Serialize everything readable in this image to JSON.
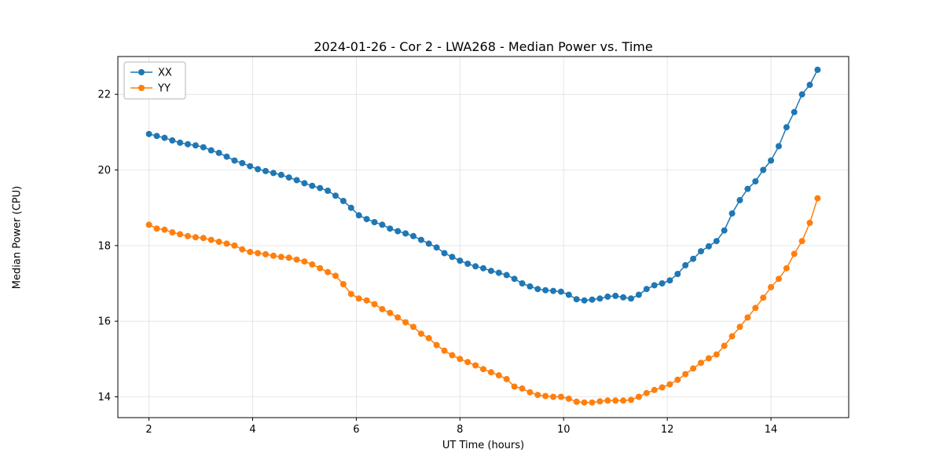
{
  "figure": {
    "title": "2024-01-26 - Cor 2 - LWA268 - Median Power vs. Time",
    "xlabel": "UT Time (hours)",
    "ylabel": "Median Power (CPU)"
  },
  "chart_data": {
    "type": "line",
    "title": "2024-01-26 - Cor 2 - LWA268 - Median Power vs. Time",
    "xlabel": "UT Time (hours)",
    "ylabel": "Median Power (CPU)",
    "xlim": [
      1.4,
      15.5
    ],
    "ylim": [
      13.45,
      23.0
    ],
    "xticks": [
      2,
      4,
      6,
      8,
      10,
      12,
      14
    ],
    "yticks": [
      14,
      16,
      18,
      20,
      22
    ],
    "grid": true,
    "legend_position": "upper left",
    "grid_color": "#e0e0e0",
    "x": [
      2.0,
      2.15,
      2.3,
      2.45,
      2.6,
      2.75,
      2.9,
      3.05,
      3.2,
      3.35,
      3.5,
      3.65,
      3.8,
      3.95,
      4.1,
      4.25,
      4.4,
      4.55,
      4.7,
      4.85,
      5.0,
      5.15,
      5.3,
      5.45,
      5.6,
      5.75,
      5.9,
      6.05,
      6.2,
      6.35,
      6.5,
      6.65,
      6.8,
      6.95,
      7.1,
      7.25,
      7.4,
      7.55,
      7.7,
      7.85,
      8.0,
      8.15,
      8.3,
      8.45,
      8.6,
      8.75,
      8.9,
      9.05,
      9.2,
      9.35,
      9.5,
      9.65,
      9.8,
      9.95,
      10.1,
      10.25,
      10.4,
      10.55,
      10.7,
      10.85,
      11.0,
      11.15,
      11.3,
      11.45,
      11.6,
      11.75,
      11.9,
      12.05,
      12.2,
      12.35,
      12.5,
      12.65,
      12.8,
      12.95,
      13.1,
      13.25,
      13.4,
      13.55,
      13.7,
      13.85,
      14.0,
      14.15,
      14.3,
      14.45,
      14.6,
      14.75,
      14.9
    ],
    "series": [
      {
        "name": "XX",
        "color": "#1f77b4",
        "marker": "circle",
        "values": [
          20.95,
          20.9,
          20.85,
          20.78,
          20.72,
          20.68,
          20.65,
          20.6,
          20.52,
          20.45,
          20.35,
          20.25,
          20.18,
          20.1,
          20.02,
          19.97,
          19.92,
          19.87,
          19.8,
          19.73,
          19.65,
          19.58,
          19.52,
          19.45,
          19.32,
          19.18,
          19.0,
          18.8,
          18.7,
          18.62,
          18.55,
          18.45,
          18.38,
          18.32,
          18.25,
          18.15,
          18.05,
          17.95,
          17.8,
          17.7,
          17.6,
          17.52,
          17.45,
          17.4,
          17.33,
          17.28,
          17.22,
          17.12,
          17.0,
          16.92,
          16.85,
          16.82,
          16.8,
          16.78,
          16.7,
          16.58,
          16.55,
          16.57,
          16.6,
          16.65,
          16.67,
          16.63,
          16.6,
          16.7,
          16.85,
          16.95,
          17.0,
          17.08,
          17.25,
          17.48,
          17.65,
          17.85,
          17.98,
          18.12,
          18.4,
          18.85,
          19.2,
          19.5,
          19.7,
          20.0,
          20.25,
          20.63,
          21.13,
          21.53,
          22.0,
          22.25,
          22.65
        ]
      },
      {
        "name": "YY",
        "color": "#ff7f0e",
        "marker": "circle",
        "values": [
          18.55,
          18.45,
          18.42,
          18.35,
          18.3,
          18.25,
          18.22,
          18.2,
          18.15,
          18.1,
          18.05,
          18.0,
          17.9,
          17.83,
          17.8,
          17.77,
          17.73,
          17.7,
          17.68,
          17.63,
          17.58,
          17.5,
          17.4,
          17.3,
          17.2,
          16.98,
          16.72,
          16.6,
          16.55,
          16.45,
          16.32,
          16.22,
          16.1,
          15.97,
          15.85,
          15.67,
          15.55,
          15.37,
          15.22,
          15.1,
          15.0,
          14.92,
          14.83,
          14.73,
          14.65,
          14.57,
          14.47,
          14.27,
          14.22,
          14.12,
          14.05,
          14.02,
          14.0,
          14.0,
          13.95,
          13.87,
          13.85,
          13.85,
          13.88,
          13.9,
          13.9,
          13.9,
          13.92,
          14.0,
          14.1,
          14.18,
          14.25,
          14.33,
          14.45,
          14.6,
          14.75,
          14.9,
          15.02,
          15.12,
          15.35,
          15.6,
          15.85,
          16.1,
          16.35,
          16.62,
          16.9,
          17.12,
          17.4,
          17.78,
          18.12,
          18.6,
          19.25
        ]
      }
    ]
  }
}
